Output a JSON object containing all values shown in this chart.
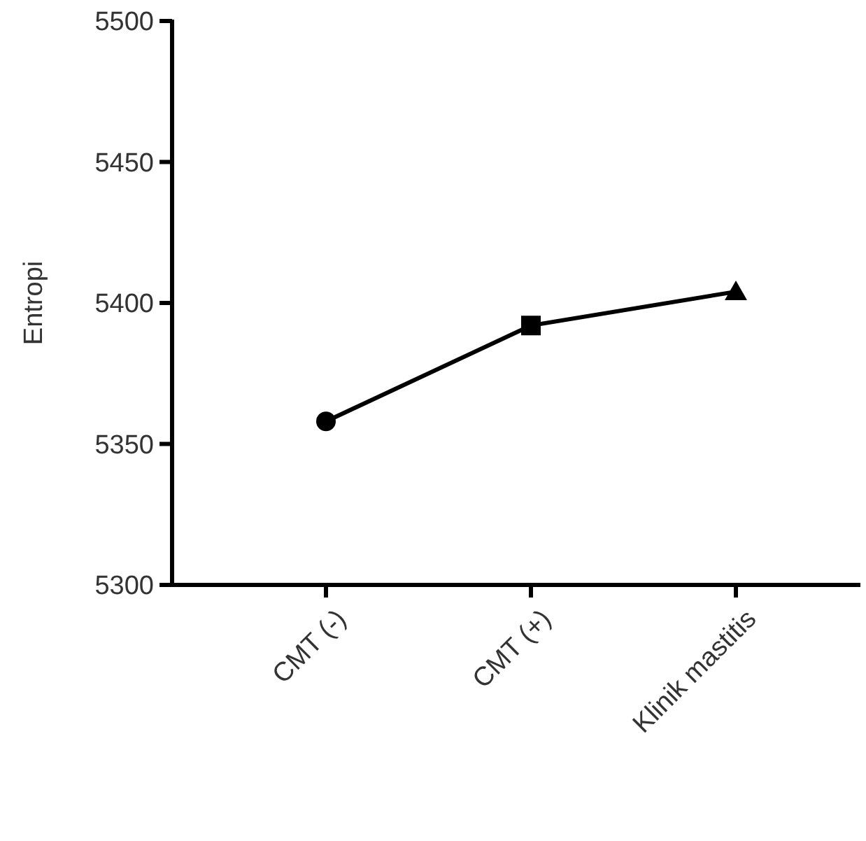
{
  "chart_data": {
    "type": "line",
    "ylabel": "Entropi",
    "categories": [
      "CMT (-)",
      "CMT (+)",
      "Klinik mastitis"
    ],
    "series": [
      {
        "color": "#000000",
        "values": [
          5358,
          5392,
          5404
        ],
        "marker": "none",
        "line_style": "solid"
      },
      {
        "type": "scatter",
        "color": "#000000",
        "x": [
          "CMT (-)"
        ],
        "values": [
          5358
        ],
        "marker": "circle"
      },
      {
        "type": "scatter",
        "color": "#000000",
        "x": [
          "CMT (+)"
        ],
        "values": [
          5392
        ],
        "marker": "square"
      },
      {
        "type": "scatter",
        "color": "#000000",
        "x": [
          "Klinik mastitis"
        ],
        "values": [
          5404
        ],
        "marker": "triangle"
      }
    ],
    "ylim": [
      5300,
      5500
    ],
    "yticks": [
      5300,
      5350,
      5400,
      5450,
      5500
    ],
    "grid": false
  }
}
